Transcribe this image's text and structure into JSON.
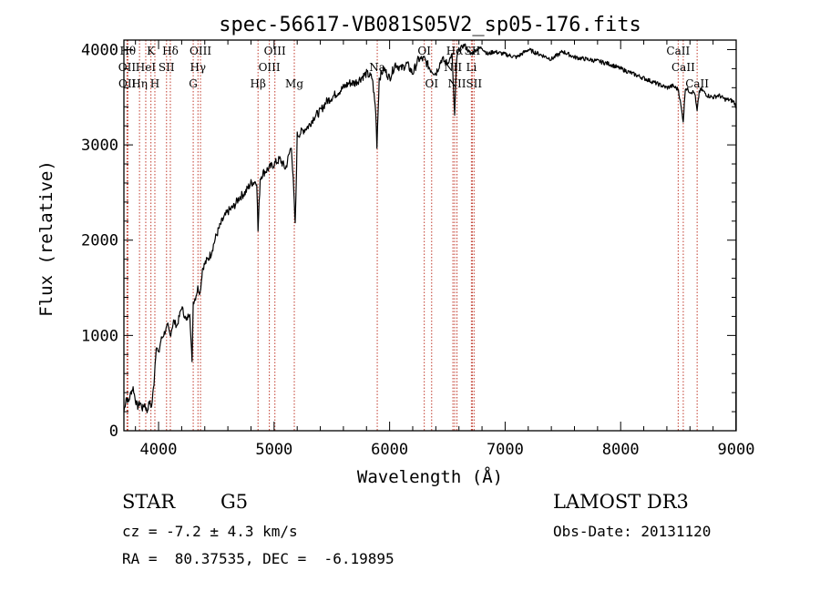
{
  "chart_data": {
    "type": "line",
    "title": "spec-56617-VB081S05V2_sp05-176.fits",
    "xlabel": "Wavelength (Å)",
    "ylabel": "Flux (relative)",
    "xlim": [
      3700,
      9000
    ],
    "ylim": [
      0,
      4100
    ],
    "x_ticks": [
      4000,
      5000,
      6000,
      7000,
      8000,
      9000
    ],
    "y_ticks": [
      0,
      1000,
      2000,
      3000,
      4000
    ],
    "grid": false,
    "series": [
      {
        "name": "flux",
        "x": [
          3700,
          3720,
          3740,
          3760,
          3780,
          3800,
          3820,
          3840,
          3860,
          3880,
          3900,
          3920,
          3940,
          3960,
          3980,
          4000,
          4020,
          4040,
          4060,
          4080,
          4100,
          4130,
          4160,
          4200,
          4240,
          4270,
          4290,
          4300,
          4320,
          4340,
          4360,
          4380,
          4400,
          4450,
          4500,
          4550,
          4600,
          4650,
          4700,
          4750,
          4800,
          4850,
          4861,
          4880,
          4900,
          4950,
          5000,
          5050,
          5100,
          5150,
          5170,
          5183,
          5200,
          5250,
          5300,
          5350,
          5400,
          5450,
          5500,
          5550,
          5600,
          5650,
          5700,
          5750,
          5800,
          5850,
          5880,
          5890,
          5896,
          5910,
          5950,
          6000,
          6050,
          6100,
          6150,
          6200,
          6250,
          6300,
          6350,
          6400,
          6450,
          6500,
          6540,
          6563,
          6580,
          6600,
          6650,
          6700,
          6750,
          6800,
          6850,
          6900,
          7000,
          7100,
          7200,
          7300,
          7400,
          7500,
          7600,
          7700,
          7800,
          7900,
          8000,
          8100,
          8200,
          8300,
          8400,
          8450,
          8500,
          8542,
          8560,
          8600,
          8640,
          8662,
          8680,
          8700,
          8750,
          8800,
          8850,
          8900,
          8950,
          8980,
          9000
        ],
        "y": [
          200,
          350,
          300,
          400,
          450,
          320,
          250,
          300,
          230,
          280,
          200,
          300,
          250,
          500,
          900,
          800,
          950,
          1000,
          1050,
          1100,
          1000,
          1150,
          1100,
          1300,
          1150,
          1250,
          700,
          1350,
          1400,
          1500,
          1450,
          1700,
          1750,
          1850,
          2050,
          2200,
          2300,
          2350,
          2450,
          2500,
          2600,
          2620,
          2100,
          2650,
          2700,
          2750,
          2800,
          2850,
          2750,
          3000,
          2500,
          2150,
          3100,
          3150,
          3200,
          3300,
          3350,
          3450,
          3500,
          3550,
          3600,
          3650,
          3650,
          3700,
          3750,
          3700,
          3350,
          3000,
          3200,
          3700,
          3800,
          3700,
          3850,
          3800,
          3850,
          3750,
          3900,
          3900,
          3800,
          3750,
          3900,
          3850,
          3950,
          3300,
          3900,
          4000,
          4050,
          3950,
          4000,
          4020,
          3950,
          3980,
          3950,
          3920,
          4000,
          3950,
          3900,
          3980,
          3920,
          3900,
          3880,
          3850,
          3800,
          3750,
          3700,
          3650,
          3600,
          3620,
          3580,
          3250,
          3600,
          3560,
          3550,
          3350,
          3560,
          3580,
          3520,
          3500,
          3520,
          3480,
          3470,
          3450,
          3400
        ]
      }
    ],
    "lines": [
      {
        "wl": 3734,
        "label": "Hθ",
        "row": 0
      },
      {
        "wl": 3727,
        "label": "OII",
        "row": 1
      },
      {
        "wl": 3729,
        "label": "OII",
        "row": 2
      },
      {
        "wl": 3835,
        "label": "Hη",
        "row": 2
      },
      {
        "wl": 3889,
        "label": "HeI",
        "row": 1
      },
      {
        "wl": 3934,
        "label": "K",
        "row": 0
      },
      {
        "wl": 3968,
        "label": "H",
        "row": 2
      },
      {
        "wl": 4069,
        "label": "SII",
        "row": 1
      },
      {
        "wl": 4102,
        "label": "Hδ",
        "row": 0
      },
      {
        "wl": 4300,
        "label": "G",
        "row": 2
      },
      {
        "wl": 4341,
        "label": "Hγ",
        "row": 1
      },
      {
        "wl": 4363,
        "label": "OIII",
        "row": 0
      },
      {
        "wl": 4861,
        "label": "Hβ",
        "row": 2
      },
      {
        "wl": 4959,
        "label": "OIII",
        "row": 1
      },
      {
        "wl": 5007,
        "label": "OIII",
        "row": 0
      },
      {
        "wl": 5175,
        "label": "Mg",
        "row": 2
      },
      {
        "wl": 5893,
        "label": "Na",
        "row": 1
      },
      {
        "wl": 6300,
        "label": "OI",
        "row": 0
      },
      {
        "wl": 6364,
        "label": "OI",
        "row": 2
      },
      {
        "wl": 6548,
        "label": "NII",
        "row": 1
      },
      {
        "wl": 6563,
        "label": "Hα",
        "row": 0
      },
      {
        "wl": 6583,
        "label": "NII",
        "row": 2
      },
      {
        "wl": 6708,
        "label": "Li",
        "row": 1
      },
      {
        "wl": 6716,
        "label": "SII",
        "row": 0
      },
      {
        "wl": 6731,
        "label": "SII",
        "row": 2
      },
      {
        "wl": 8498,
        "label": "CaII",
        "row": 0
      },
      {
        "wl": 8542,
        "label": "CaII",
        "row": 1
      },
      {
        "wl": 8662,
        "label": "CaII",
        "row": 2
      }
    ]
  },
  "info": {
    "object_class": "STAR",
    "subclass": "G5",
    "redshift": "cz = -7.2 ± 4.3 km/s",
    "coords": "RA =  80.37535, DEC =  -6.19895",
    "survey": "LAMOST DR3",
    "obs_date": "Obs-Date: 20131120"
  },
  "colors": {
    "line_marker": "#c0392b",
    "spectrum": "#000000",
    "axes": "#000000"
  }
}
